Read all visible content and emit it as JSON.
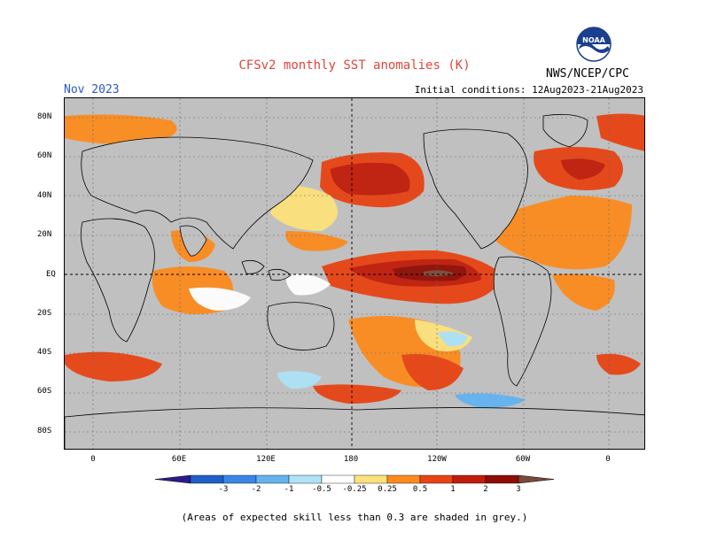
{
  "header": {
    "title": "CFSv2 monthly SST anomalies (K)",
    "month": "Nov 2023",
    "initial_conditions": "Initial conditions: 12Aug2023-21Aug2023",
    "agency": "NWS/NCEP/CPC",
    "logo_text": "NOAA"
  },
  "lat_labels": [
    "80N",
    "60N",
    "40N",
    "20N",
    "EQ",
    "20S",
    "40S",
    "60S",
    "80S"
  ],
  "lon_labels": [
    "0",
    "60E",
    "120E",
    "180",
    "120W",
    "60W",
    "0"
  ],
  "colorbar": {
    "tick_labels": [
      "-3",
      "-2",
      "-1",
      "-0.5",
      "-0.25",
      "0.25",
      "0.5",
      "1",
      "2",
      "3"
    ],
    "colors": [
      "#2a1c8c",
      "#1f5fc8",
      "#3a86e6",
      "#64b3f0",
      "#aee2f7",
      "#ffffff",
      "#fde17a",
      "#fb8b1e",
      "#e74313",
      "#c11c0a",
      "#8e0d05",
      "#7b4a3a"
    ]
  },
  "footnote": "(Areas of expected skill less than 0.3 are shaded in grey.)"
}
